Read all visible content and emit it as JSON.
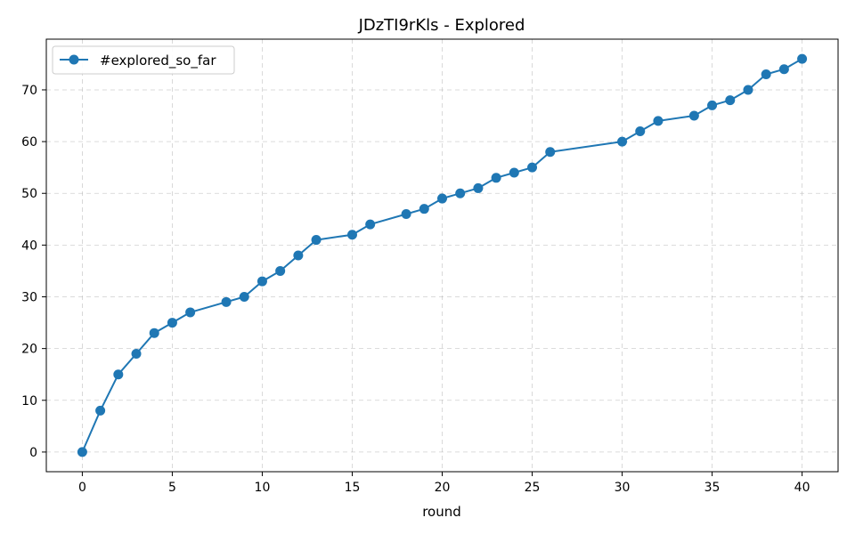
{
  "chart_data": {
    "type": "line",
    "title": "JDzTI9rKls - Explored",
    "xlabel": "round",
    "ylabel": "",
    "xlim": [
      -2,
      42
    ],
    "ylim": [
      -3.8,
      79.8
    ],
    "xticks": [
      0,
      5,
      10,
      15,
      20,
      25,
      30,
      35,
      40
    ],
    "yticks": [
      0,
      10,
      20,
      30,
      40,
      50,
      60,
      70
    ],
    "grid": true,
    "legend_position": "top-left",
    "series": [
      {
        "name": "#explored_so_far",
        "color": "#1f77b4",
        "marker": "circle",
        "x": [
          0,
          1,
          2,
          3,
          4,
          5,
          6,
          8,
          9,
          10,
          11,
          12,
          13,
          15,
          16,
          18,
          19,
          20,
          21,
          22,
          23,
          24,
          25,
          26,
          30,
          31,
          32,
          34,
          35,
          36,
          37,
          38,
          39,
          40
        ],
        "y": [
          0,
          8,
          15,
          19,
          23,
          25,
          27,
          29,
          30,
          33,
          35,
          38,
          41,
          42,
          44,
          46,
          47,
          49,
          50,
          51,
          53,
          54,
          55,
          58,
          60,
          62,
          64,
          65,
          67,
          68,
          70,
          73,
          74,
          76
        ]
      }
    ]
  }
}
